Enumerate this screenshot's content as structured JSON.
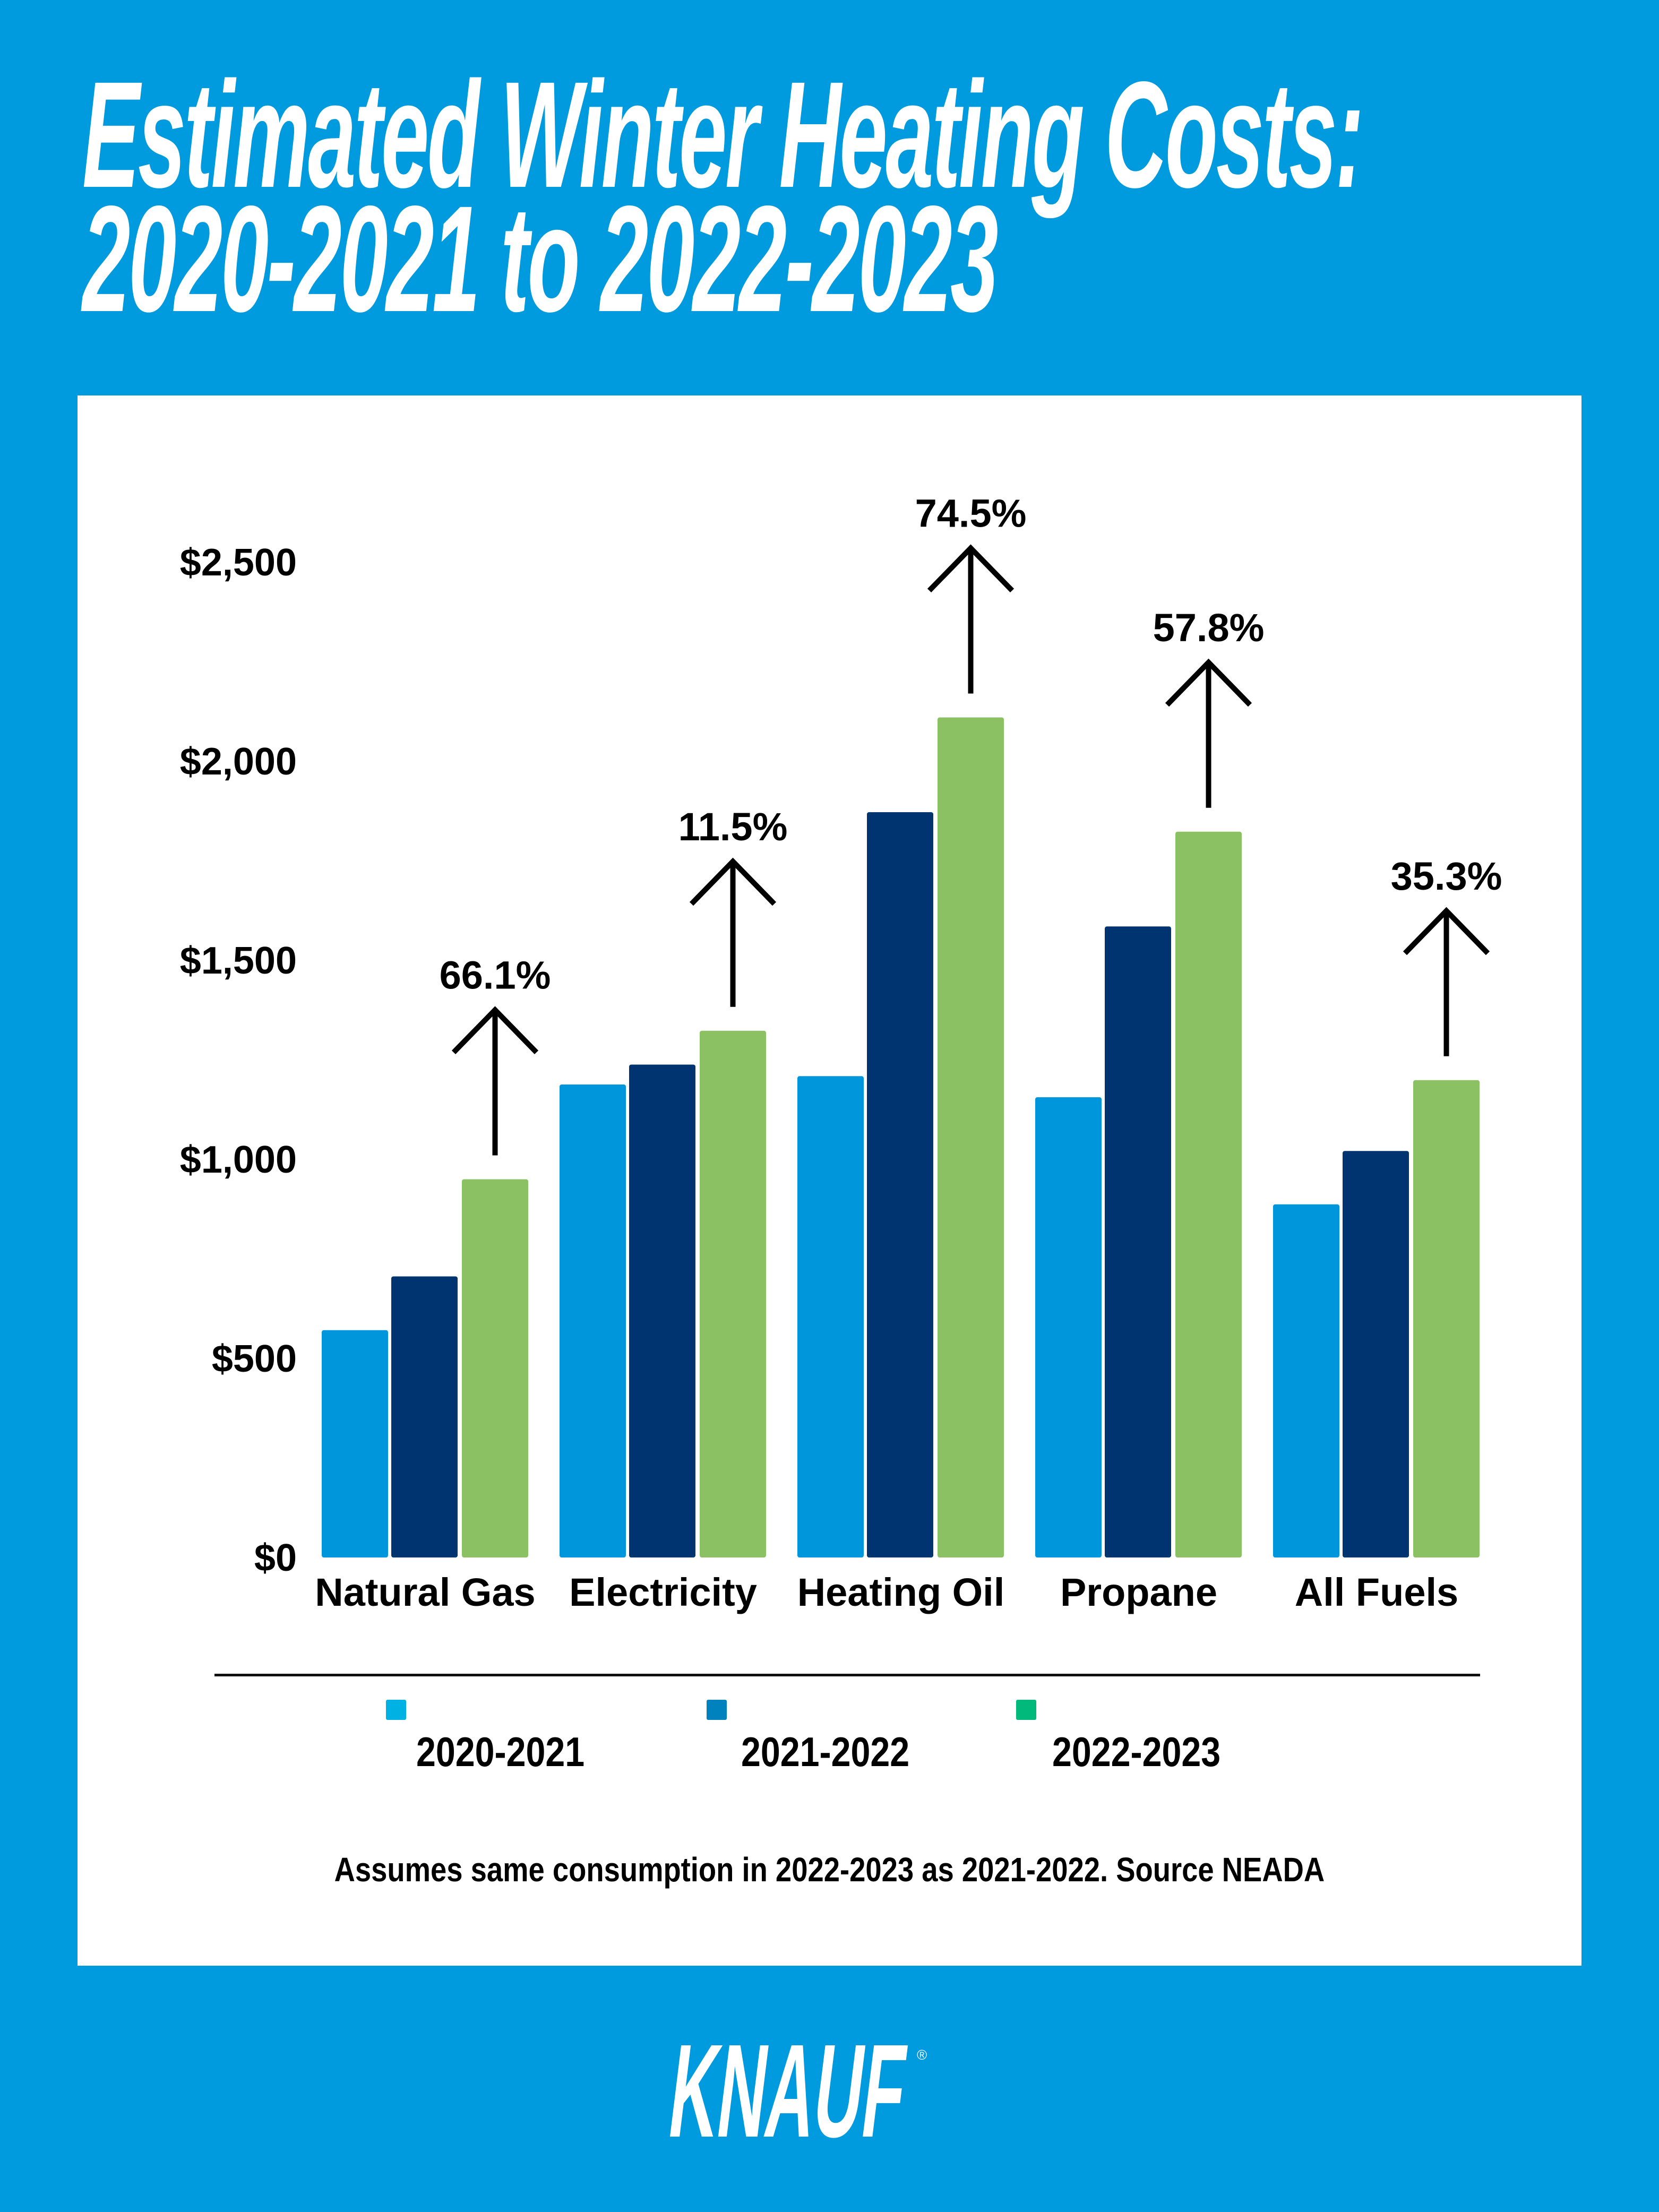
{
  "title": {
    "line1": "Estimated Winter Heating Costs:",
    "line2": "2020-2021 to 2022-2023"
  },
  "chart_data": {
    "type": "bar",
    "title": "Estimated Winter Heating Costs: 2020-2021 to 2022-2023",
    "xlabel": "",
    "ylabel": "",
    "ylim": [
      0,
      2500
    ],
    "yticks": [
      0,
      500,
      1000,
      1500,
      2000,
      2500
    ],
    "ytick_labels": [
      "$0",
      "$500",
      "$1,000",
      "$1,500",
      "$2,000",
      "$2,500"
    ],
    "categories": [
      "Natural Gas",
      "Electricity",
      "Heating Oil",
      "Propane",
      "All Fuels"
    ],
    "series": [
      {
        "name": "2020-2021",
        "color": "#0096DB",
        "legend_color": "#00B2E3",
        "values": [
          571,
          1188,
          1209,
          1156,
          887
        ]
      },
      {
        "name": "2021-2022",
        "color": "#003470",
        "legend_color": "#0082BE",
        "values": [
          706,
          1238,
          1872,
          1585,
          1021
        ]
      },
      {
        "name": "2022-2023",
        "color": "#8BC162",
        "legend_color": "#00B97A",
        "values": [
          950,
          1323,
          2110,
          1823,
          1199
        ]
      }
    ],
    "annotations": [
      "66.1%",
      "11.5%",
      "74.5%",
      "57.8%",
      "35.3%"
    ],
    "grid": false,
    "legend_position": "bottom"
  },
  "footnote": "Assumes same consumption in 2022-2023 as 2021-2022.  Source NEADA",
  "logo": {
    "text": "KNAUF",
    "mark": "®"
  },
  "colors": {
    "background": "#009ADE",
    "panel": "#FFFFFF"
  }
}
